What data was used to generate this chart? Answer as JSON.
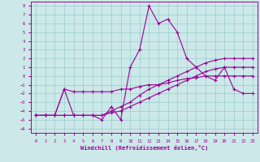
{
  "xlabel": "Windchill (Refroidissement éolien,°C)",
  "background_color": "#cce8e8",
  "grid_color": "#99cccc",
  "line_color": "#990099",
  "xlim": [
    -0.5,
    23.5
  ],
  "ylim": [
    -6.5,
    8.5
  ],
  "xticks": [
    0,
    1,
    2,
    3,
    4,
    5,
    6,
    7,
    8,
    9,
    10,
    11,
    12,
    13,
    14,
    15,
    16,
    17,
    18,
    19,
    20,
    21,
    22,
    23
  ],
  "yticks": [
    -6,
    -5,
    -4,
    -3,
    -2,
    -1,
    0,
    1,
    2,
    3,
    4,
    5,
    6,
    7,
    8
  ],
  "series": [
    {
      "x": [
        0,
        1,
        2,
        3,
        4,
        5,
        6,
        7,
        8,
        9,
        10,
        11,
        12,
        13,
        14,
        15,
        16,
        17,
        18,
        19,
        20,
        21,
        22,
        23
      ],
      "y": [
        -4.5,
        -4.5,
        -4.5,
        -1.5,
        -4.5,
        -4.5,
        -4.5,
        -5,
        -3.5,
        -5,
        1,
        3,
        8,
        6,
        6.5,
        5,
        2,
        1,
        0,
        -0.5,
        1,
        -1.5,
        -2,
        -2
      ]
    },
    {
      "x": [
        0,
        1,
        2,
        3,
        4,
        5,
        6,
        7,
        8,
        9,
        10,
        11,
        12,
        13,
        14,
        15,
        16,
        17,
        18,
        19,
        20,
        21,
        22,
        23
      ],
      "y": [
        -4.5,
        -4.5,
        -4.5,
        -1.5,
        -1.8,
        -1.8,
        -1.8,
        -1.8,
        -1.8,
        -1.5,
        -1.5,
        -1.2,
        -1.0,
        -1.0,
        -0.8,
        -0.5,
        -0.3,
        -0.2,
        0,
        0,
        0,
        0,
        0,
        0
      ]
    },
    {
      "x": [
        0,
        1,
        2,
        3,
        4,
        5,
        6,
        7,
        8,
        9,
        10,
        11,
        12,
        13,
        14,
        15,
        16,
        17,
        18,
        19,
        20,
        21,
        22,
        23
      ],
      "y": [
        -4.5,
        -4.5,
        -4.5,
        -4.5,
        -4.5,
        -4.5,
        -4.5,
        -4.5,
        -4.2,
        -4.0,
        -3.5,
        -3,
        -2.5,
        -2,
        -1.5,
        -1,
        -0.5,
        0,
        0.5,
        0.8,
        1,
        1,
        1,
        1
      ]
    },
    {
      "x": [
        0,
        1,
        2,
        3,
        4,
        5,
        6,
        7,
        8,
        9,
        10,
        11,
        12,
        13,
        14,
        15,
        16,
        17,
        18,
        19,
        20,
        21,
        22,
        23
      ],
      "y": [
        -4.5,
        -4.5,
        -4.5,
        -4.5,
        -4.5,
        -4.5,
        -4.5,
        -4.5,
        -4.0,
        -3.5,
        -3,
        -2.2,
        -1.5,
        -1,
        -0.5,
        0,
        0.5,
        1,
        1.5,
        1.8,
        2,
        2,
        2,
        2
      ]
    }
  ]
}
